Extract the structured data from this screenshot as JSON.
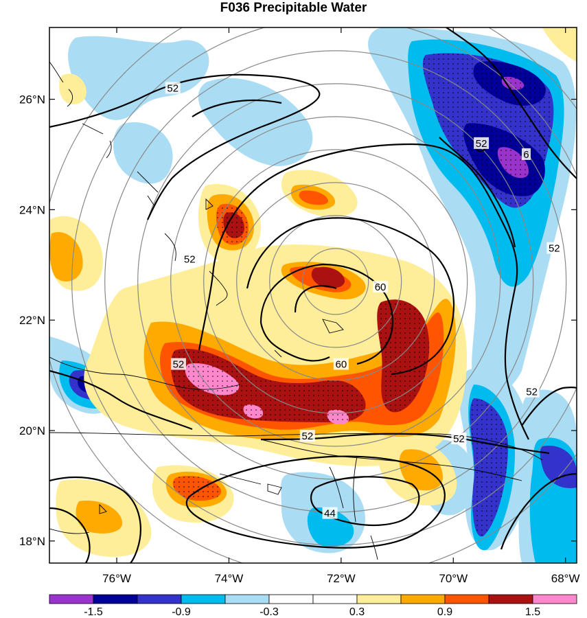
{
  "title": "F036 Precipitable Water",
  "map": {
    "lat_ticks": [
      {
        "label": "26°N",
        "lat": 26
      },
      {
        "label": "24°N",
        "lat": 24
      },
      {
        "label": "22°N",
        "lat": 22
      },
      {
        "label": "20°N",
        "lat": 20
      },
      {
        "label": "18°N",
        "lat": 18
      }
    ],
    "lon_ticks": [
      {
        "label": "76°W",
        "lon": -76
      },
      {
        "label": "74°W",
        "lon": -74
      },
      {
        "label": "72°W",
        "lon": -72
      },
      {
        "label": "70°W",
        "lon": -70
      },
      {
        "label": "68°W",
        "lon": -68
      }
    ],
    "extent": {
      "lon_min": -77.2,
      "lon_max": -67.8,
      "lat_min": 17.6,
      "lat_max": 27.3
    },
    "range_rings": {
      "center_lon": -72.1,
      "center_lat": 22.7,
      "count": 9
    }
  },
  "contour_labels": [
    {
      "text": "52",
      "lon": -75.0,
      "lat": 26.2
    },
    {
      "text": "52",
      "lon": -74.7,
      "lat": 23.1
    },
    {
      "text": "52",
      "lon": -74.9,
      "lat": 21.2
    },
    {
      "text": "52",
      "lon": -69.5,
      "lat": 25.2
    },
    {
      "text": "52",
      "lon": -68.2,
      "lat": 23.3
    },
    {
      "text": "52",
      "lon": -68.6,
      "lat": 20.7
    },
    {
      "text": "52",
      "lon": -69.9,
      "lat": 19.85
    },
    {
      "text": "52",
      "lon": -72.6,
      "lat": 19.9
    },
    {
      "text": "60",
      "lon": -71.3,
      "lat": 22.6
    },
    {
      "text": "60",
      "lon": -72.0,
      "lat": 21.2
    },
    {
      "text": "44",
      "lon": -72.2,
      "lat": 18.5
    },
    {
      "text": "6",
      "lon": -68.7,
      "lat": 25.0
    }
  ],
  "colorbar": {
    "colors": [
      "#9933cc",
      "#000099",
      "#3333cc",
      "#00bbee",
      "#aaddf4",
      "#ffffff",
      "#ffffff",
      "#ffee99",
      "#ffaa00",
      "#ff5500",
      "#aa1111",
      "#ff88cc"
    ],
    "labels": [
      "-1.5",
      "-0.9",
      "-0.3",
      "0.3",
      "0.9",
      "1.5"
    ],
    "label_positions": [
      1,
      3,
      5,
      7,
      9,
      11
    ]
  }
}
